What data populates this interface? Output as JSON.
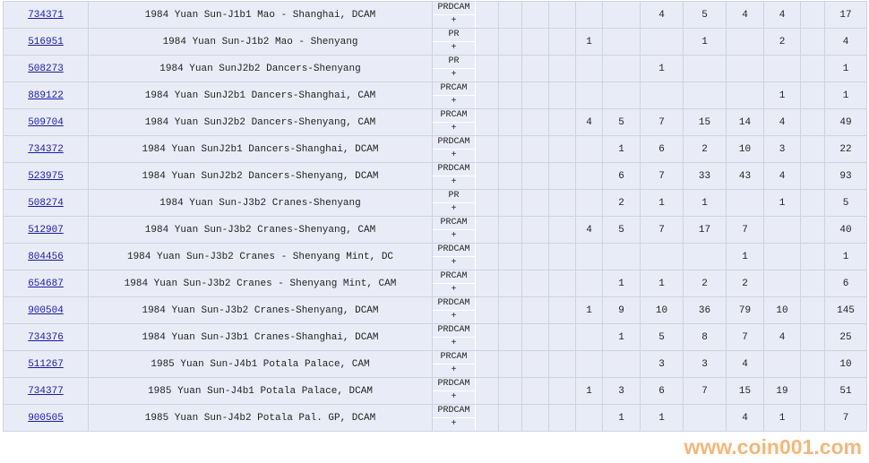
{
  "grade_plus": "+",
  "watermark": "www.coin001.com",
  "colors": {
    "link": "#1a1aa6",
    "row_bg": "#e9ecf6",
    "watermark": "#f0a050"
  },
  "rows": [
    {
      "id": "734371",
      "desc": "1984 Yuan Sun-J1b1 Mao - Shanghai, DCAM",
      "grade": "PRDCAM",
      "values": [
        "",
        "",
        "",
        "",
        "",
        "",
        "4",
        "5",
        "4",
        "4",
        "",
        "17"
      ]
    },
    {
      "id": "516951",
      "desc": "1984 Yuan Sun-J1b2 Mao - Shenyang",
      "grade": "PR",
      "values": [
        "",
        "",
        "",
        "",
        "1",
        "",
        "",
        "1",
        "",
        "2",
        "",
        "4"
      ]
    },
    {
      "id": "508273",
      "desc": "1984 Yuan SunJ2b2 Dancers-Shenyang",
      "grade": "PR",
      "values": [
        "",
        "",
        "",
        "",
        "",
        "",
        "1",
        "",
        "",
        "",
        "",
        "1"
      ]
    },
    {
      "id": "889122",
      "desc": "1984 Yuan SunJ2b1 Dancers-Shanghai, CAM",
      "grade": "PRCAM",
      "values": [
        "",
        "",
        "",
        "",
        "",
        "",
        "",
        "",
        "",
        "1",
        "",
        "1"
      ]
    },
    {
      "id": "509704",
      "desc": "1984 Yuan SunJ2b2 Dancers-Shenyang, CAM",
      "grade": "PRCAM",
      "values": [
        "",
        "",
        "",
        "",
        "4",
        "5",
        "7",
        "15",
        "14",
        "4",
        "",
        "49"
      ]
    },
    {
      "id": "734372",
      "desc": "1984 Yuan SunJ2b1 Dancers-Shanghai, DCAM",
      "grade": "PRDCAM",
      "values": [
        "",
        "",
        "",
        "",
        "",
        "1",
        "6",
        "2",
        "10",
        "3",
        "",
        "22"
      ]
    },
    {
      "id": "523975",
      "desc": "1984 Yuan SunJ2b2 Dancers-Shenyang, DCAM",
      "grade": "PRDCAM",
      "values": [
        "",
        "",
        "",
        "",
        "",
        "6",
        "7",
        "33",
        "43",
        "4",
        "",
        "93"
      ]
    },
    {
      "id": "508274",
      "desc": "1984 Yuan Sun-J3b2 Cranes-Shenyang",
      "grade": "PR",
      "values": [
        "",
        "",
        "",
        "",
        "",
        "2",
        "1",
        "1",
        "",
        "1",
        "",
        "5"
      ]
    },
    {
      "id": "512907",
      "desc": "1984 Yuan Sun-J3b2 Cranes-Shenyang, CAM",
      "grade": "PRCAM",
      "values": [
        "",
        "",
        "",
        "",
        "4",
        "5",
        "7",
        "17",
        "7",
        "",
        "",
        "40"
      ]
    },
    {
      "id": "804456",
      "desc": "1984 Yuan Sun-J3b2 Cranes - Shenyang Mint, DC",
      "grade": "PRDCAM",
      "values": [
        "",
        "",
        "",
        "",
        "",
        "",
        "",
        "",
        "1",
        "",
        "",
        "1"
      ]
    },
    {
      "id": "654687",
      "desc": "1984 Yuan Sun-J3b2 Cranes - Shenyang Mint, CAM",
      "grade": "PRCAM",
      "values": [
        "",
        "",
        "",
        "",
        "",
        "1",
        "1",
        "2",
        "2",
        "",
        "",
        "6"
      ]
    },
    {
      "id": "900504",
      "desc": "1984 Yuan Sun-J3b2 Cranes-Shenyang, DCAM",
      "grade": "PRDCAM",
      "values": [
        "",
        "",
        "",
        "",
        "1",
        "9",
        "10",
        "36",
        "79",
        "10",
        "",
        "145"
      ]
    },
    {
      "id": "734376",
      "desc": "1984 Yuan Sun-J3b1 Cranes-Shanghai, DCAM",
      "grade": "PRDCAM",
      "values": [
        "",
        "",
        "",
        "",
        "",
        "1",
        "5",
        "8",
        "7",
        "4",
        "",
        "25"
      ]
    },
    {
      "id": "511267",
      "desc": "1985 Yuan Sun-J4b1 Potala Palace, CAM",
      "grade": "PRCAM",
      "values": [
        "",
        "",
        "",
        "",
        "",
        "",
        "3",
        "3",
        "4",
        "",
        "",
        "10"
      ]
    },
    {
      "id": "734377",
      "desc": "1985 Yuan Sun-J4b1 Potala Palace, DCAM",
      "grade": "PRDCAM",
      "values": [
        "",
        "",
        "",
        "",
        "1",
        "3",
        "6",
        "7",
        "15",
        "19",
        "",
        "51"
      ]
    },
    {
      "id": "900505",
      "desc": "1985 Yuan Sun-J4b2 Potala Pal. GP, DCAM",
      "grade": "PRDCAM",
      "values": [
        "",
        "",
        "",
        "",
        "",
        "1",
        "1",
        "",
        "4",
        "1",
        "",
        "7"
      ]
    }
  ]
}
